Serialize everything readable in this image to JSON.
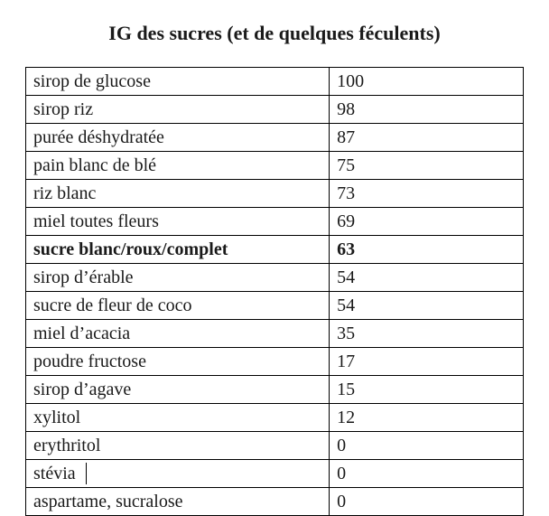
{
  "title": "IG des sucres (et de quelques féculents)",
  "table": {
    "type": "table",
    "columns": [
      "name",
      "value"
    ],
    "column_widths_pct": [
      61,
      39
    ],
    "border_color": "#000000",
    "background_color": "#ffffff",
    "text_color": "#1a1a1a",
    "font_family": "Georgia, Times New Roman, serif",
    "cell_fontsize": 20,
    "title_fontsize": 22,
    "bold_row_index": 6,
    "cursor_row_index": 14,
    "rows": [
      {
        "name": "sirop de glucose",
        "value": "100"
      },
      {
        "name": "sirop riz",
        "value": "98"
      },
      {
        "name": "purée déshydratée",
        "value": "87"
      },
      {
        "name": "pain blanc de blé",
        "value": "75"
      },
      {
        "name": "riz blanc",
        "value": "73"
      },
      {
        "name": "miel toutes fleurs",
        "value": "69"
      },
      {
        "name": "sucre blanc/roux/complet",
        "value": "63"
      },
      {
        "name": "sirop d’érable",
        "value": "54"
      },
      {
        "name": "sucre de fleur de coco",
        "value": "54"
      },
      {
        "name": "miel d’acacia",
        "value": "35"
      },
      {
        "name": "poudre fructose",
        "value": "17"
      },
      {
        "name": "sirop d’agave",
        "value": "15"
      },
      {
        "name": "xylitol",
        "value": "12"
      },
      {
        "name": "erythritol",
        "value": "0"
      },
      {
        "name": "stévia",
        "value": "0"
      },
      {
        "name": "aspartame, sucralose",
        "value": "0"
      }
    ]
  }
}
